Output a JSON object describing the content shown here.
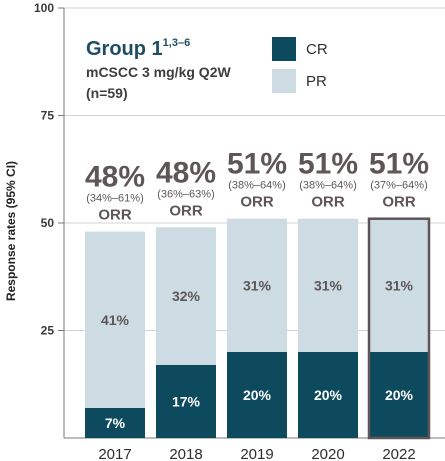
{
  "chart_data": {
    "type": "bar",
    "stacked": true,
    "title": "Group 1",
    "title_superscript": "1,3–6",
    "subtitle_lines": [
      "mCSCC 3 mg/kg Q2W",
      "(n=59)"
    ],
    "ylabel": "Response rates (95% CI)",
    "ylim": [
      0,
      100
    ],
    "yticks": [
      25,
      50,
      75,
      100
    ],
    "categories": [
      "2017",
      "2018",
      "2019",
      "2020",
      "2022"
    ],
    "highlighted_category": "2022",
    "series": [
      {
        "name": "CR",
        "color": "#0d4a5e",
        "label_color": "#ffffff",
        "values": [
          7,
          17,
          20,
          20,
          20
        ]
      },
      {
        "name": "PR",
        "color": "#cddbe3",
        "label_color": "#5e5656",
        "values": [
          41,
          32,
          31,
          31,
          31
        ]
      }
    ],
    "orr": [
      {
        "pct": "48%",
        "ci": "(34%–61%)",
        "label": "ORR"
      },
      {
        "pct": "48%",
        "ci": "(36%–63%)",
        "label": "ORR"
      },
      {
        "pct": "51%",
        "ci": "(38%–64%)",
        "label": "ORR"
      },
      {
        "pct": "51%",
        "ci": "(38%–64%)",
        "label": "ORR"
      },
      {
        "pct": "51%",
        "ci": "(37%–64%)",
        "label": "ORR"
      }
    ],
    "legend": {
      "position": "top-right"
    }
  }
}
